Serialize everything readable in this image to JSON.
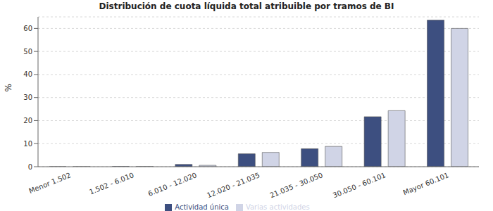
{
  "chart_data": {
    "type": "bar",
    "title": "Distribución de cuota líquida total atribuible por tramos de BI",
    "y_label": "%",
    "categories": [
      "Menor 1.502",
      "1.502 - 6.010",
      "6.010 - 12.020",
      "12.020 - 21.035",
      "21.035 - 30.050",
      "30.050 - 60.101",
      "Mayor 60.101"
    ],
    "series": [
      {
        "name": "Actividad única",
        "color": "#3d4f80",
        "values": [
          0.02,
          0.1,
          1.0,
          5.6,
          7.8,
          21.7,
          63.6
        ]
      },
      {
        "name": "Varias actividades",
        "color": "#d0d4e6",
        "values": [
          0.02,
          0.1,
          0.6,
          6.2,
          8.8,
          24.3,
          60.0
        ]
      }
    ],
    "ylim": [
      0,
      65
    ],
    "yticks": [
      0,
      10,
      20,
      30,
      40,
      50,
      60
    ],
    "grid": true,
    "legend": "bottom"
  }
}
